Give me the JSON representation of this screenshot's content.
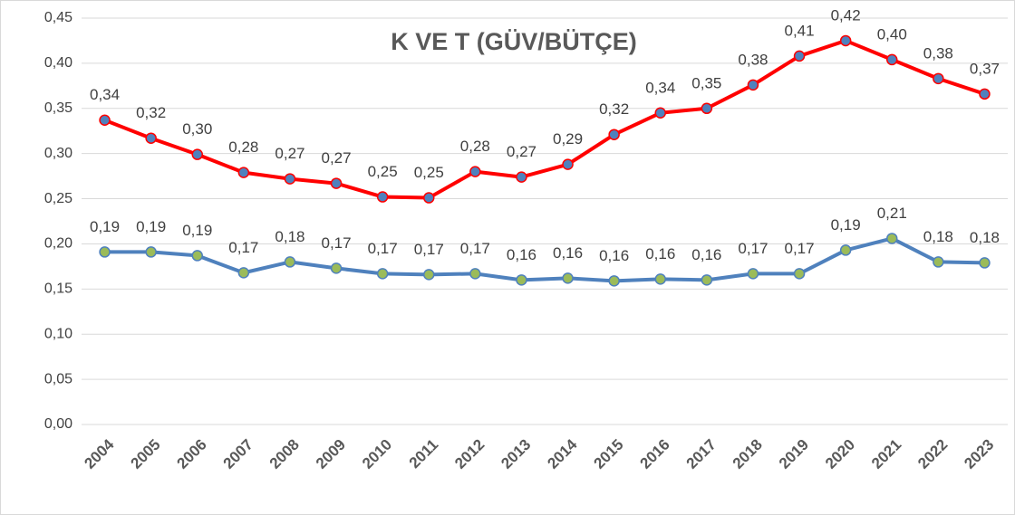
{
  "chart_data": {
    "type": "line",
    "title": "K VE T (GÜV/BÜTÇE)",
    "categories": [
      "2004",
      "2005",
      "2006",
      "2007",
      "2008",
      "2009",
      "2010",
      "2011",
      "2012",
      "2013",
      "2014",
      "2015",
      "2016",
      "2017",
      "2018",
      "2019",
      "2020",
      "2021",
      "2022",
      "2023"
    ],
    "series": [
      {
        "color": "#ff0000",
        "marker_color": "#4f81bd",
        "values": [
          0.337,
          0.317,
          0.299,
          0.279,
          0.272,
          0.267,
          0.252,
          0.251,
          0.28,
          0.274,
          0.288,
          0.321,
          0.345,
          0.35,
          0.376,
          0.408,
          0.425,
          0.404,
          0.383,
          0.366
        ],
        "value_labels": [
          "0,34",
          "0,32",
          "0,30",
          "0,28",
          "0,27",
          "0,27",
          "0,25",
          "0,25",
          "0,28",
          "0,27",
          "0,29",
          "0,32",
          "0,34",
          "0,35",
          "0,38",
          "0,41",
          "0,42",
          "0,40",
          "0,38",
          "0,37"
        ]
      },
      {
        "color": "#4f81bd",
        "marker_color": "#9bbb59",
        "values": [
          0.191,
          0.191,
          0.187,
          0.168,
          0.18,
          0.173,
          0.167,
          0.166,
          0.167,
          0.16,
          0.162,
          0.159,
          0.161,
          0.16,
          0.167,
          0.167,
          0.193,
          0.206,
          0.18,
          0.179
        ],
        "value_labels": [
          "0,19",
          "0,19",
          "0,19",
          "0,17",
          "0,18",
          "0,17",
          "0,17",
          "0,17",
          "0,17",
          "0,16",
          "0,16",
          "0,16",
          "0,16",
          "0,16",
          "0,17",
          "0,17",
          "0,19",
          "0,21",
          "0,18",
          "0,18"
        ]
      }
    ],
    "ylim": [
      0,
      0.45
    ],
    "yticks": [
      {
        "value": 0,
        "label": "0,00"
      },
      {
        "value": 0.05,
        "label": "0,05"
      },
      {
        "value": 0.1,
        "label": "0,10"
      },
      {
        "value": 0.15,
        "label": "0,15"
      },
      {
        "value": 0.2,
        "label": "0,20"
      },
      {
        "value": 0.25,
        "label": "0,25"
      },
      {
        "value": 0.3,
        "label": "0,30"
      },
      {
        "value": 0.35,
        "label": "0,35"
      },
      {
        "value": 0.4,
        "label": "0,40"
      },
      {
        "value": 0.45,
        "label": "0,45"
      }
    ],
    "grid": true
  }
}
